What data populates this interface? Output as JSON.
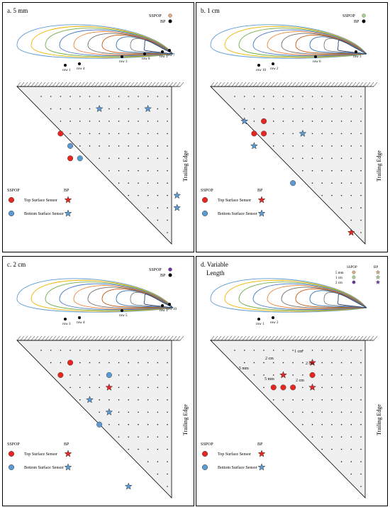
{
  "axis_label": "Trailing Edge",
  "legend_common": {
    "sspop_title": "SSPOP",
    "bp_title": "BP",
    "top_label": "Top Surface Sensor",
    "bottom_label": "Bottom Surface Sensor"
  },
  "colors": {
    "top_sensor": "#e8251f",
    "bottom_sensor": "#5b9bd5",
    "grid_dot": "#222222",
    "plate_fill": "#f0f0f0",
    "airfoil_curves": [
      "#5b9bd5",
      "#f0b400",
      "#70ad47",
      "#4472c4",
      "#ed7d31",
      "#6d6d6d",
      "#c55a11",
      "#2e75b6",
      "#7f7f7f",
      "#264478"
    ]
  },
  "panels": [
    {
      "title": "a. 5 mm",
      "legend": {
        "sspop": "SSPOP",
        "bp": "BP",
        "sspop_color": "#e8a87c",
        "bp_color": "#000000"
      },
      "row_labels": [
        "row 1",
        "row 4",
        "row 3",
        "row 1",
        "row 7",
        "row 8"
      ],
      "markers_top": [
        [
          3,
          2
        ],
        [
          5,
          3
        ]
      ],
      "markers_bottom": [
        [
          4,
          3
        ],
        [
          5,
          4
        ]
      ],
      "stars_top": [],
      "stars_bottom": [
        [
          1,
          6
        ],
        [
          1,
          11
        ],
        [
          8,
          14
        ],
        [
          9,
          14
        ]
      ],
      "show_legend": true,
      "annotations": []
    },
    {
      "title": "b. 1 cm",
      "legend": {
        "sspop": "SSPOP",
        "bp": "BP",
        "sspop_color": "#a9d18e",
        "bp_color": "#000000"
      },
      "row_labels": [
        "row 10",
        "row 2",
        "row 6",
        "row 3"
      ],
      "markers_top": [
        [
          2,
          3
        ],
        [
          3,
          2
        ],
        [
          3,
          3
        ]
      ],
      "markers_bottom": [
        [
          7,
          6
        ]
      ],
      "stars_top": [
        [
          11,
          12
        ]
      ],
      "stars_bottom": [
        [
          2,
          1
        ],
        [
          3,
          7
        ],
        [
          4,
          2
        ]
      ],
      "show_legend": true,
      "annotations": []
    },
    {
      "title": "c. 2 cm",
      "legend": {
        "sspop": "SSPOP",
        "bp": "BP",
        "sspop_color": "#7030a0",
        "bp_color": "#000000"
      },
      "row_labels": [
        "row 3",
        "row 4",
        "row 5",
        "row 1",
        "row 10"
      ],
      "markers_top": [
        [
          1,
          3
        ],
        [
          2,
          2
        ]
      ],
      "markers_bottom": [
        [
          2,
          7
        ],
        [
          6,
          6
        ]
      ],
      "stars_top": [
        [
          3,
          7
        ]
      ],
      "stars_bottom": [
        [
          4,
          5
        ],
        [
          5,
          7
        ],
        [
          11,
          9
        ]
      ],
      "show_legend": true,
      "annotations": []
    },
    {
      "title": "d. Variable Length",
      "legend": {
        "sspop": "SSPOP",
        "bp": "BP",
        "rows": [
          "5 mm",
          "1 cm",
          "2 cm"
        ],
        "row_colors": [
          "#e8a87c",
          "#a9d18e",
          "#7030a0"
        ]
      },
      "row_labels": [
        "row 1",
        "row 2"
      ],
      "markers_top": [
        [
          2,
          8
        ],
        [
          3,
          6
        ],
        [
          3,
          5
        ],
        [
          3,
          4
        ]
      ],
      "markers_bottom": [],
      "stars_top": [
        [
          1,
          8
        ],
        [
          2,
          5
        ],
        [
          3,
          8
        ]
      ],
      "stars_bottom": [],
      "show_legend": true,
      "annotations": [
        "1 cm",
        "2 cm",
        "2 cm",
        "5 mm",
        "5 mm",
        "2 cm"
      ]
    }
  ]
}
